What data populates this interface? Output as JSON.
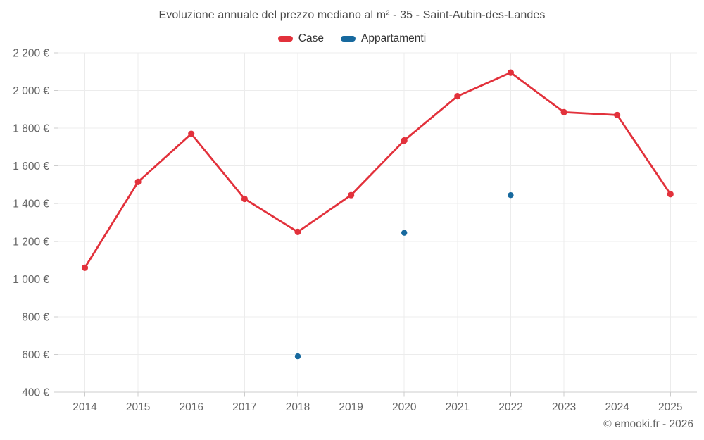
{
  "title": "Evoluzione annuale del prezzo mediano al m² - 35 - Saint-Aubin-des-Landes",
  "legend": [
    {
      "label": "Case",
      "color": "#e2313b"
    },
    {
      "label": "Appartamenti",
      "color": "#17699e"
    }
  ],
  "footer": "© emooki.fr - 2026",
  "colors": {
    "background": "#ffffff",
    "grid": "#ececec",
    "plot_border": "#e6e6e6",
    "axis": "#cccccc",
    "axis_text": "#666666",
    "title_text": "#4a4a4a",
    "legend_text": "#333333",
    "case": "#e2313b",
    "appartamenti": "#17699e"
  },
  "chart_data": {
    "type": "line",
    "title": "Evoluzione annuale del prezzo mediano al m² - 35 - Saint-Aubin-des-Landes",
    "xlabel": "",
    "ylabel": "",
    "categories": [
      "2014",
      "2015",
      "2016",
      "2017",
      "2018",
      "2019",
      "2020",
      "2021",
      "2022",
      "2023",
      "2024",
      "2025"
    ],
    "series": [
      {
        "name": "Case",
        "type": "line",
        "color": "#e2313b",
        "values": [
          1060,
          1515,
          1770,
          1425,
          1250,
          1445,
          1735,
          1970,
          2095,
          1885,
          1870,
          1450
        ]
      },
      {
        "name": "Appartamenti",
        "type": "scatter",
        "color": "#17699e",
        "values": [
          null,
          null,
          null,
          null,
          590,
          null,
          1245,
          null,
          1445,
          null,
          null,
          null
        ]
      }
    ],
    "ylim": [
      400,
      2200
    ],
    "yticks": [
      {
        "value": 400,
        "label": "400 €"
      },
      {
        "value": 600,
        "label": "600 €"
      },
      {
        "value": 800,
        "label": "800 €"
      },
      {
        "value": 1000,
        "label": "1 000 €"
      },
      {
        "value": 1200,
        "label": "1 200 €"
      },
      {
        "value": 1400,
        "label": "1 400 €"
      },
      {
        "value": 1600,
        "label": "1 600 €"
      },
      {
        "value": 1800,
        "label": "1 800 €"
      },
      {
        "value": 2000,
        "label": "2 000 €"
      },
      {
        "value": 2200,
        "label": "2 200 €"
      }
    ],
    "grid": true,
    "legend_position": "top"
  }
}
